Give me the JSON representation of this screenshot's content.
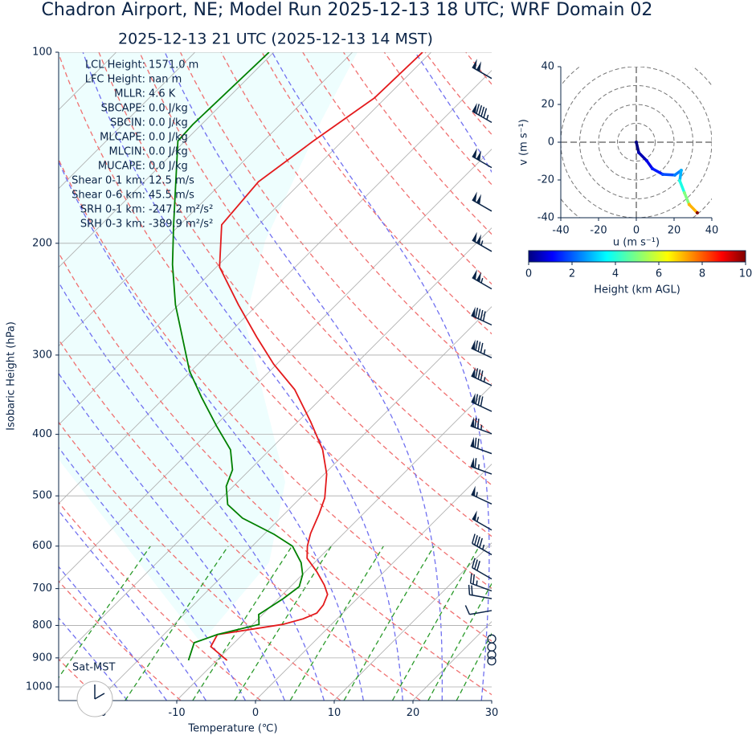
{
  "chart_data": [
    {
      "type": "skewt",
      "title": "Chadron Airport, NE; Model Run 2025-12-13 18 UTC; WRF Domain 02",
      "subtitle": "2025-12-13 21 UTC  (2025-12-13 14 MST)",
      "xlabel": "Temperature (℃)",
      "ylabel": "Isobaric Height (hPa)",
      "xlim": [
        -25,
        30
      ],
      "ylim": [
        1050,
        100
      ],
      "log_y": true,
      "xticks": [
        -20,
        -10,
        0,
        10,
        20,
        30
      ],
      "yticks": [
        100,
        200,
        300,
        400,
        500,
        600,
        700,
        800,
        900,
        1000
      ],
      "grid": true,
      "series": [
        {
          "color": "#e31a1c",
          "pressure": [
            908,
            864,
            827,
            797,
            781,
            765,
            743,
            715,
            691,
            659,
            627,
            600,
            573,
            534,
            504,
            462,
            423,
            382,
            340,
            310,
            281,
            250,
            218,
            187,
            160,
            138,
            118,
            100
          ],
          "values": [
            -8.7,
            -12.5,
            -13.2,
            -6.2,
            -4.3,
            -3.3,
            -3.5,
            -4.3,
            -5.9,
            -8.5,
            -11.5,
            -13.0,
            -14.2,
            -15.6,
            -16.9,
            -19.7,
            -23.3,
            -28.4,
            -34.5,
            -40.4,
            -46.0,
            -52.4,
            -59.6,
            -64.7,
            -65.5,
            -63.7,
            -61.4,
            -61.1
          ]
        },
        {
          "color": "#008000",
          "pressure": [
            908,
            852,
            827,
            797,
            769,
            726,
            695,
            665,
            637,
            600,
            575,
            542,
            516,
            483,
            455,
            423,
            388,
            350,
            318,
            250,
            216,
            187,
            138,
            130,
            100
          ],
          "values": [
            -13.6,
            -15.1,
            -13.2,
            -9.2,
            -10.5,
            -9.4,
            -8.9,
            -10.0,
            -11.7,
            -14.9,
            -18.7,
            -24.8,
            -28.4,
            -30.9,
            -32.2,
            -35.0,
            -39.8,
            -45.3,
            -50.2,
            -60.4,
            -65.9,
            -70.8,
            -80.9,
            -81.1,
            -80.6
          ]
        }
      ],
      "wind": {
        "pressure": [
          110,
          129,
          152,
          178,
          206,
          236,
          269,
          303,
          335,
          368,
          399,
          429,
          462,
          515,
          566,
          619,
          676,
          706,
          726,
          758,
          840,
          865,
          890,
          910
        ],
        "speed": [
          100,
          95,
          100,
          100,
          105,
          105,
          90,
          85,
          85,
          80,
          75,
          70,
          65,
          55,
          55,
          45,
          30,
          25,
          20,
          10,
          0,
          0,
          0,
          0
        ],
        "direction": [
          300,
          300,
          300,
          300,
          300,
          300,
          295,
          295,
          295,
          295,
          290,
          290,
          290,
          295,
          300,
          300,
          300,
          290,
          280,
          260,
          0,
          0,
          0,
          0
        ]
      },
      "stats": [
        {
          "label": "LCL Height:",
          "value": "1571.0 m"
        },
        {
          "label": "LFC Height:",
          "value": "nan m"
        },
        {
          "label": "MLLR:",
          "value": "4.6 K"
        },
        {
          "label": "SBCAPE:",
          "value": "0.0 J/kg"
        },
        {
          "label": "SBCIN:",
          "value": "0.0 J/kg"
        },
        {
          "label": "MLCAPE:",
          "value": "0.0 J/kg"
        },
        {
          "label": "MLCIN:",
          "value": "0.0 J/kg"
        },
        {
          "label": "MUCAPE:",
          "value": "0.0 J/kg"
        },
        {
          "label": "Shear 0-1 km:",
          "value": "12.5 m/s"
        },
        {
          "label": "Shear 0-6 km:",
          "value": "45.5 m/s"
        },
        {
          "label": "SRH 0-1 km:",
          "value": "-247.2 m²/s²"
        },
        {
          "label": "SRH 0-3 km:",
          "value": "-389.9 m²/s²"
        }
      ],
      "clock_label": "Sat-MST"
    },
    {
      "type": "hodograph",
      "xlabel": "u (m s⁻¹)",
      "ylabel": "v (m s⁻¹)",
      "xlim": [
        -40,
        40
      ],
      "ylim": [
        -40,
        40
      ],
      "xticks": [
        -40,
        -20,
        0,
        20,
        40
      ],
      "yticks": [
        -40,
        -20,
        0,
        20,
        40
      ],
      "u": [
        0,
        1.3,
        5.5,
        8.5,
        14,
        20.4,
        23.8,
        23,
        25.5,
        28,
        32.3
      ],
      "v": [
        0,
        -5.5,
        -9.8,
        -14,
        -17,
        -17.4,
        -14.9,
        -20.4,
        -26.8,
        -33,
        -37.4
      ],
      "heights": [
        0,
        0.5,
        1,
        1.5,
        2,
        2.5,
        3,
        4,
        5,
        7,
        10
      ],
      "colorbar": {
        "label": "Height (km AGL)",
        "lim": [
          0,
          10
        ],
        "ticks": [
          0,
          2,
          4,
          6,
          8,
          10
        ]
      }
    }
  ]
}
